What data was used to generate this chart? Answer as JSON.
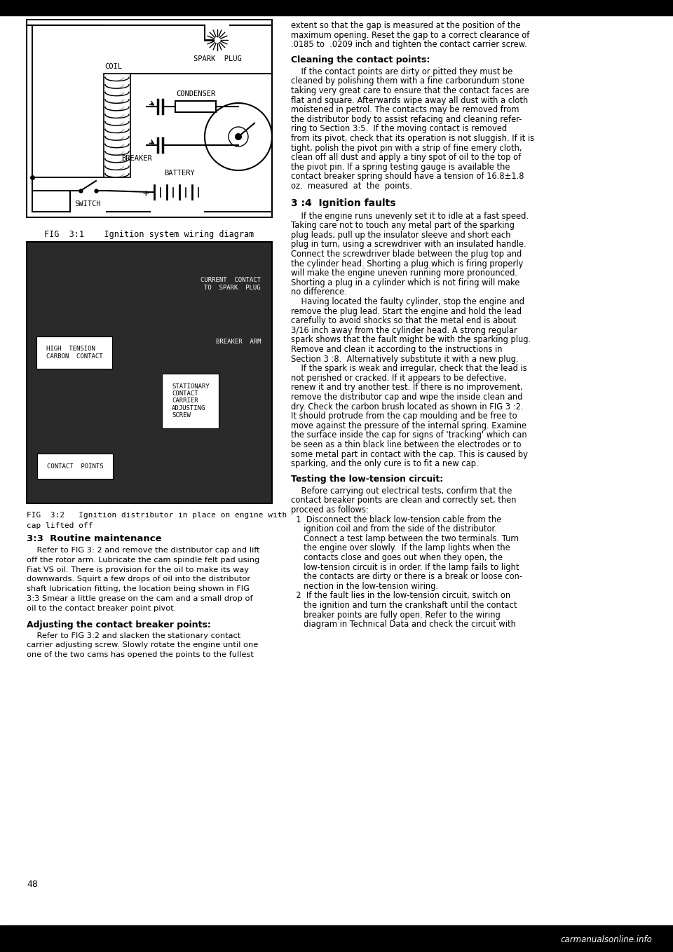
{
  "page_bg": "#ffffff",
  "page_number": "48",
  "diagram_title": "FIG  3:1    Ignition system wiring diagram",
  "photo_title_line1": "FIG  3:2   Ignition distributor in place on engine with",
  "photo_title_line2": "cap lifted off",
  "right_text_title1": "Cleaning the contact points:",
  "right_text_body1": "    If the contact points are dirty or pitted they must be\ncleaned by polishing them with a fine carborundum stone\ntaking very great care to ensure that the contact faces are\nflat and square. Afterwards wipe away all dust with a cloth\nmoistened in petrol. The contacts may be removed from\nthe distributor body to assist refacing and cleaning refer-\nring to Section 3:5.  If the moving contact is removed\nfrom its pivot, check that its operation is not sluggish. If it is\ntight, polish the pivot pin with a strip of fine emery cloth,\nclean off all dust and apply a tiny spot of oil to the top of\nthe pivot pin. If a spring testing gauge is available the\ncontact breaker spring should have a tension of 16.8±1.8\noz.  measured  at  the  points.",
  "right_text_heading2": "3 :4  Ignition faults",
  "right_text_body2": "    If the engine runs unevenly set it to idle at a fast speed.\nTaking care not to touch any metal part of the sparking\nplug leads, pull up the insulator sleeve and short each\nplug in turn, using a screwdriver with an insulated handle.\nConnect the screwdriver blade between the plug top and\nthe cylinder head. Shorting a plug which is firing properly\nwill make the engine uneven running more pronounced.\nShorting a plug in a cylinder which is not firing will make\nno difference.\n    Having located the faulty cylinder, stop the engine and\nremove the plug lead. Start the engine and hold the lead\ncarefully to avoid shocks so that the metal end is about\n3/16 inch away from the cylinder head. A strong regular\nspark shows that the fault might be with the sparking plug.\nRemove and clean it according to the instructions in\nSection 3 :8.  Alternatively substitute it with a new plug.\n    If the spark is weak and irregular, check that the lead is\nnot perished or cracked. If it appears to be defective,\nrenew it and try another test. If there is no improvement,\nremove the distributor cap and wipe the inside clean and\ndry. Check the carbon brush located as shown in FIG 3 :2.\nIt should protrude from the cap moulding and be free to\nmove against the pressure of the internal spring. Examine\nthe surface inside the cap for signs of 'tracking' which can\nbe seen as a thin black line between the electrodes or to\nsome metal part in contact with the cap. This is caused by\nsparking, and the only cure is to fit a new cap.",
  "right_text_heading3": "Testing the low-tension circuit:",
  "right_text_body3": "    Before carrying out electrical tests, confirm that the\ncontact breaker points are clean and correctly set, then\nproceed as follows:\n  1  Disconnect the black low-tension cable from the\n     ignition coil and from the side of the distributor.\n     Connect a test lamp between the two terminals. Turn\n     the engine over slowly.  If the lamp lights when the\n     contacts close and goes out when they open, the\n     low-tension circuit is in order. If the lamp fails to light\n     the contacts are dirty or there is a break or loose con-\n     nection in the low-tension wiring.\n  2  If the fault lies in the low-tension circuit, switch on\n     the ignition and turn the crankshaft until the contact\n     breaker points are fully open. Refer to the wiring\n     diagram in Technical Data and check the circuit with",
  "top_right_text": "extent so that the gap is measured at the position of the\nmaximum opening. Reset the gap to a correct clearance of\n.0185 to  .0209 inch and tighten the contact carrier screw.",
  "section_heading": "3:3  Routine maintenance",
  "section_body": "    Refer to FIG 3: 2 and remove the distributor cap and lift\noff the rotor arm. Lubricate the cam spindle felt pad using\nFiat VS oil. There is provision for the oil to make its way\ndownwards. Squirt a few drops of oil into the distributor\nshaft lubrication fitting, the location being shown in FIG\n3:3 Smear a little grease on the cam and a small drop of\noil to the contact breaker point pivot.",
  "adj_heading": "Adjusting the contact breaker points:",
  "adj_body": "    Refer to FIG 3:2 and slacken the stationary contact\ncarrier adjusting screw. Slowly rotate the engine until one\none of the two cams has opened the points to the fullest",
  "watermark": "carmanualsonline.info"
}
